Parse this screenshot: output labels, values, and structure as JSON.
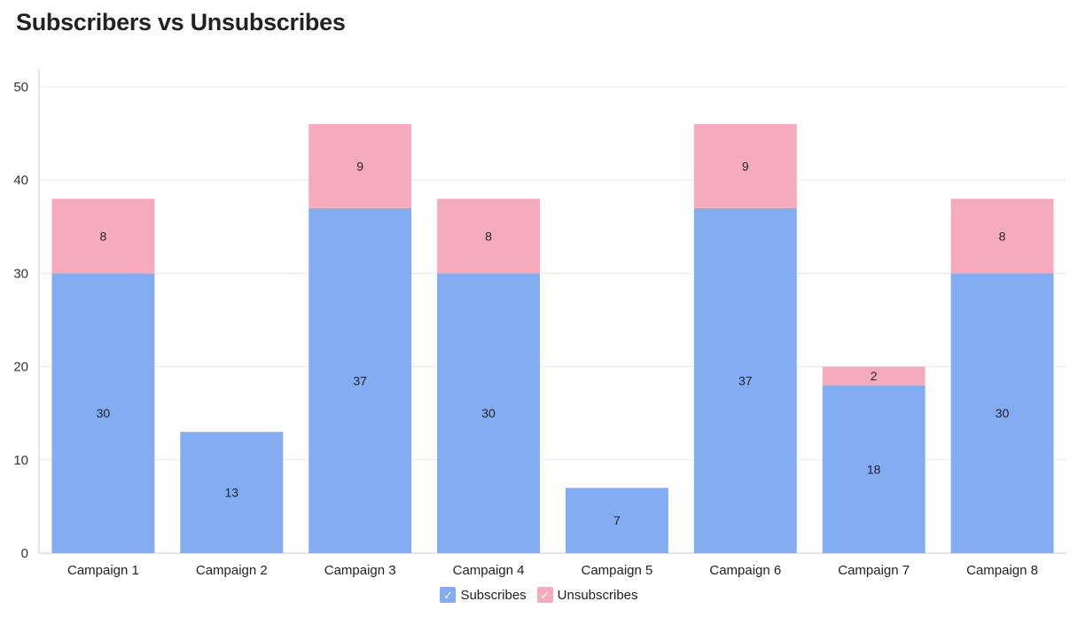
{
  "chart_data": {
    "type": "bar",
    "stacked": true,
    "title": "Subscribers vs Unsubscribes",
    "xlabel": "",
    "ylabel": "",
    "categories": [
      "Campaign 1",
      "Campaign 2",
      "Campaign 3",
      "Campaign 4",
      "Campaign 5",
      "Campaign 6",
      "Campaign 7",
      "Campaign 8"
    ],
    "series": [
      {
        "name": "Subscribes",
        "color": "#84acf3",
        "values": [
          30,
          13,
          37,
          30,
          7,
          37,
          18,
          30
        ]
      },
      {
        "name": "Unsubscribes",
        "color": "#f6abbd",
        "values": [
          8,
          0,
          9,
          8,
          0,
          9,
          2,
          8
        ]
      }
    ],
    "ylim": [
      0,
      50
    ],
    "yticks": [
      0,
      10,
      20,
      30,
      40,
      50
    ],
    "grid": true,
    "legend_position": "bottom-center",
    "legend_icon": "check-icon"
  }
}
